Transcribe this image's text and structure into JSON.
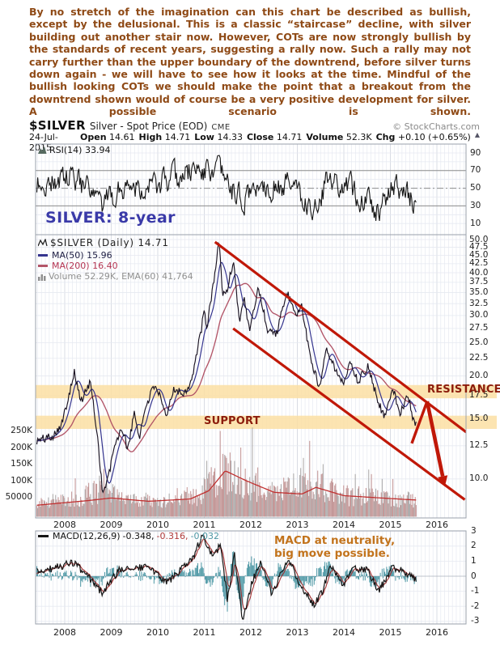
{
  "commentary": "By no stretch of the imagination can this chart be described as bullish, except by the delusional. This is a classic “staircase” decline, with silver building out another stair now. However, COTs are now strongly bullish by the standards of recent years, suggesting a rally now. Such a rally may not carry further than the upper boundary of the downtrend, before silver turns down again - we will have to see how it looks at the time. Mindful of the bullish looking COTs we should make the point that a breakout from the downtrend shown would of course be a very positive development for silver. A possible scenario is shown.",
  "header": {
    "symbol": "$SILVER",
    "description": "Silver - Spot Price (EOD)",
    "exchange": "CME",
    "copyright": "© StockCharts.com",
    "date": "24-Jul-2015",
    "ohlc": [
      {
        "label": "Open",
        "value": "14.61"
      },
      {
        "label": "High",
        "value": "14.71"
      },
      {
        "label": "Low",
        "value": "14.33"
      },
      {
        "label": "Close",
        "value": "14.71"
      },
      {
        "label": "Volume",
        "value": "52.3K"
      },
      {
        "label": "Chg",
        "value": "+0.10 (+0.65%)"
      }
    ],
    "chg_arrow": "▲"
  },
  "rsi_panel": {
    "legend": "RSI(14) 33.94",
    "overlay_label": "SILVER: 8-year",
    "yticks": [
      "90",
      "70",
      "50",
      "30",
      "10"
    ]
  },
  "main_panel": {
    "legend_symbol": "$SILVER (Daily) 14.71",
    "legend_ma50": "MA(50) 15.96",
    "legend_ma200": "MA(200) 16.40",
    "legend_volume": "Volume 52.29K, EMA(60) 41,764",
    "resistance_label": "RESISTANCE",
    "support_label": "SUPPORT",
    "price_yticks": [
      "50.0",
      "47.5",
      "45.0",
      "42.5",
      "40.0",
      "37.5",
      "35.0",
      "32.5",
      "30.0",
      "27.5",
      "25.0",
      "22.5",
      "20.0",
      "17.5",
      "15.0",
      "12.5",
      "10.0"
    ],
    "volume_yticks": [
      "250K",
      "200K",
      "150K",
      "100K",
      "50000"
    ]
  },
  "xaxis_years": [
    "2008",
    "2009",
    "2010",
    "2011",
    "2012",
    "2013",
    "2014",
    "2015",
    "2016"
  ],
  "macd_panel": {
    "legend_name": "MACD(12,26,9)",
    "legend_values": [
      "-0.348,",
      "-0.316,",
      "-0.032"
    ],
    "annotation": [
      "MACD at neutrality,",
      "big move possible."
    ],
    "yticks": [
      "3",
      "2",
      "1",
      "0",
      "-1",
      "-2",
      "-3"
    ]
  },
  "colors": {
    "commentary_text": "#8f4a16",
    "annotation_red": "#c01808",
    "band_orange": "#fbdfa3",
    "support_resistance_text": "#8c1c0c",
    "silver8_blue": "#3a3aa8",
    "macd_note_orange": "#c2731c",
    "price_line": "#1a1322",
    "ma50": "#34348e",
    "ma200": "#b25568",
    "volume_rose": "#c09090",
    "volume_gray": "#a8a5a5",
    "volume_ema": "#c03030",
    "macd_line": "#151515",
    "macd_signal": "#a23030",
    "macd_hist": "#4e98a5",
    "grid_light": "#e6e9f1",
    "grid_year": "#c9cdd9",
    "panel_border": "#9aa0ab"
  },
  "chart_data": [
    {
      "id": "rsi",
      "type": "line",
      "title": "RSI(14)",
      "current": 33.94,
      "ylim": [
        0,
        100
      ],
      "yticks": [
        90,
        70,
        50,
        30,
        10
      ],
      "hlines": [
        {
          "y": 70,
          "style": "solid"
        },
        {
          "y": 50,
          "style": "dashdot"
        },
        {
          "y": 30,
          "style": "solid"
        }
      ],
      "keypoints": [
        [
          2007.45,
          55
        ],
        [
          2008.2,
          62
        ],
        [
          2008.8,
          28
        ],
        [
          2009.3,
          55
        ],
        [
          2010.0,
          52
        ],
        [
          2010.85,
          72
        ],
        [
          2011.3,
          68
        ],
        [
          2011.8,
          35
        ],
        [
          2012.2,
          55
        ],
        [
          2013.0,
          52
        ],
        [
          2013.3,
          25
        ],
        [
          2013.65,
          58
        ],
        [
          2014.1,
          50
        ],
        [
          2014.8,
          24
        ],
        [
          2015.1,
          55
        ],
        [
          2015.56,
          33.94
        ]
      ]
    },
    {
      "id": "price",
      "type": "line",
      "title": "$SILVER (Daily)",
      "current": 14.71,
      "y_scale": "log",
      "ylim": [
        8.5,
        52
      ],
      "yticks": [
        50,
        47.5,
        45,
        42.5,
        40,
        37.5,
        35,
        32.5,
        30,
        27.5,
        25,
        22.5,
        20,
        17.5,
        15,
        12.5,
        10
      ],
      "ma50_current": 15.96,
      "ma200_current": 16.4,
      "close_points": [
        [
          2007.4,
          12.9
        ],
        [
          2007.75,
          13.4
        ],
        [
          2007.95,
          14.6
        ],
        [
          2008.2,
          20.6
        ],
        [
          2008.35,
          16.8
        ],
        [
          2008.55,
          19.2
        ],
        [
          2008.7,
          13.5
        ],
        [
          2008.82,
          9.0
        ],
        [
          2008.95,
          10.3
        ],
        [
          2009.1,
          13.0
        ],
        [
          2009.25,
          13.9
        ],
        [
          2009.35,
          12.2
        ],
        [
          2009.5,
          15.6
        ],
        [
          2009.6,
          13.2
        ],
        [
          2009.75,
          16.5
        ],
        [
          2009.95,
          19.0
        ],
        [
          2010.12,
          16.0
        ],
        [
          2010.18,
          15.0
        ],
        [
          2010.35,
          18.5
        ],
        [
          2010.55,
          17.7
        ],
        [
          2010.72,
          19.3
        ],
        [
          2010.85,
          23.5
        ],
        [
          2011.0,
          30.8
        ],
        [
          2011.05,
          27.2
        ],
        [
          2011.32,
          49.3
        ],
        [
          2011.4,
          34.0
        ],
        [
          2011.5,
          36.0
        ],
        [
          2011.63,
          43.5
        ],
        [
          2011.75,
          29.0
        ],
        [
          2011.85,
          33.8
        ],
        [
          2011.98,
          27.0
        ],
        [
          2012.16,
          36.5
        ],
        [
          2012.35,
          27.5
        ],
        [
          2012.55,
          26.5
        ],
        [
          2012.6,
          28.2
        ],
        [
          2012.78,
          35.2
        ],
        [
          2012.95,
          29.8
        ],
        [
          2013.08,
          32.3
        ],
        [
          2013.28,
          22.8
        ],
        [
          2013.47,
          18.4
        ],
        [
          2013.63,
          24.4
        ],
        [
          2013.82,
          20.8
        ],
        [
          2013.97,
          18.9
        ],
        [
          2014.14,
          22.0
        ],
        [
          2014.3,
          19.3
        ],
        [
          2014.52,
          21.3
        ],
        [
          2014.72,
          17.2
        ],
        [
          2014.85,
          15.4
        ],
        [
          2014.95,
          16.2
        ],
        [
          2015.06,
          18.4
        ],
        [
          2015.2,
          15.6
        ],
        [
          2015.38,
          17.6
        ],
        [
          2015.5,
          14.6
        ],
        [
          2015.56,
          14.71
        ]
      ],
      "bands": [
        {
          "label": "RESISTANCE",
          "from": 17.2,
          "to": 18.8
        },
        {
          "label": "SUPPORT",
          "from": 14.0,
          "to": 15.3
        }
      ],
      "channel": {
        "upper": [
          [
            2011.23,
            49.2
          ],
          [
            2016.63,
            13.7
          ]
        ],
        "lower": [
          [
            2011.62,
            27.5
          ],
          [
            2016.6,
            8.7
          ]
        ]
      },
      "scenario_arrow": [
        [
          2015.46,
          12.7
        ],
        [
          2015.79,
          16.85
        ],
        [
          2016.17,
          9.5
        ]
      ]
    },
    {
      "id": "volume",
      "type": "bar",
      "title": "Volume",
      "current_label": "52.29K",
      "ema60_current": 41764,
      "yticks": [
        250000,
        200000,
        150000,
        100000,
        50000
      ],
      "envelope": [
        [
          2007.4,
          30000
        ],
        [
          2008.2,
          45000
        ],
        [
          2008.78,
          75000
        ],
        [
          2009.3,
          40000
        ],
        [
          2010.2,
          40000
        ],
        [
          2010.9,
          60000
        ],
        [
          2011.35,
          120000
        ],
        [
          2011.8,
          95000
        ],
        [
          2012.5,
          60000
        ],
        [
          2013.27,
          95000
        ],
        [
          2013.9,
          60000
        ],
        [
          2014.7,
          50000
        ],
        [
          2015.56,
          42000
        ]
      ],
      "spikes": [
        [
          2008.75,
          115000
        ],
        [
          2011.05,
          160000
        ],
        [
          2011.35,
          250000
        ],
        [
          2011.55,
          185000
        ],
        [
          2011.78,
          200000
        ],
        [
          2012.15,
          140000
        ],
        [
          2013.27,
          220000
        ],
        [
          2013.55,
          150000
        ],
        [
          2014.25,
          120000
        ],
        [
          2015.05,
          105000
        ]
      ],
      "ema_points": [
        [
          2007.4,
          26000
        ],
        [
          2008.5,
          40000
        ],
        [
          2009.0,
          48000
        ],
        [
          2009.8,
          38000
        ],
        [
          2010.7,
          45000
        ],
        [
          2011.1,
          70000
        ],
        [
          2011.45,
          130000
        ],
        [
          2011.9,
          100000
        ],
        [
          2012.5,
          65000
        ],
        [
          2013.1,
          60000
        ],
        [
          2013.4,
          80000
        ],
        [
          2014.0,
          55000
        ],
        [
          2014.8,
          48000
        ],
        [
          2015.56,
          41764
        ]
      ]
    },
    {
      "id": "macd",
      "type": "line+histogram",
      "title": "MACD(12,26,9)",
      "current": {
        "macd": -0.348,
        "signal": -0.316,
        "hist": -0.032
      },
      "ylim": [
        -3,
        3
      ],
      "yticks": [
        3,
        2,
        1,
        0,
        -1,
        -2,
        -3
      ],
      "keypoints": [
        [
          2007.45,
          0.3
        ],
        [
          2008.2,
          0.9
        ],
        [
          2008.6,
          -0.4
        ],
        [
          2008.8,
          -1.1
        ],
        [
          2009.2,
          0.5
        ],
        [
          2009.8,
          0.6
        ],
        [
          2010.2,
          -0.4
        ],
        [
          2010.75,
          1.1
        ],
        [
          2010.95,
          2.7
        ],
        [
          2011.2,
          1.2
        ],
        [
          2011.35,
          2.2
        ],
        [
          2011.5,
          -1.6
        ],
        [
          2011.65,
          1.5
        ],
        [
          2011.82,
          -2.9
        ],
        [
          2012.0,
          -0.7
        ],
        [
          2012.2,
          1.0
        ],
        [
          2012.45,
          -1.2
        ],
        [
          2012.8,
          1.2
        ],
        [
          2013.05,
          -0.5
        ],
        [
          2013.35,
          -1.9
        ],
        [
          2013.55,
          -1.0
        ],
        [
          2013.7,
          0.9
        ],
        [
          2014.0,
          -0.6
        ],
        [
          2014.2,
          0.5
        ],
        [
          2014.5,
          0.4
        ],
        [
          2014.75,
          -1.0
        ],
        [
          2015.05,
          0.6
        ],
        [
          2015.3,
          0.3
        ],
        [
          2015.56,
          -0.348
        ]
      ]
    }
  ]
}
